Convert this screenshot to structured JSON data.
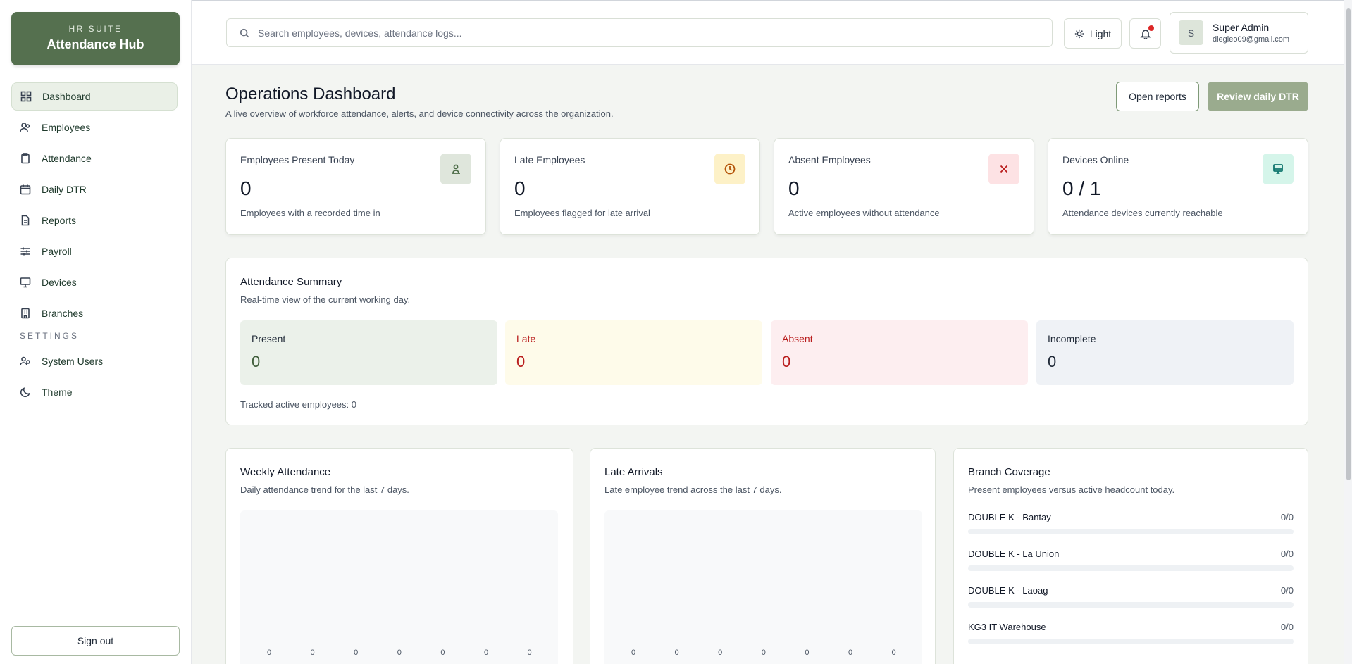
{
  "sidebar": {
    "brand_kicker": "HR SUITE",
    "brand_title": "Attendance Hub",
    "items": [
      {
        "label": "Dashboard",
        "icon": "grid-icon",
        "active": true
      },
      {
        "label": "Employees",
        "icon": "users-icon"
      },
      {
        "label": "Attendance",
        "icon": "clipboard-icon"
      },
      {
        "label": "Daily DTR",
        "icon": "calendar-icon"
      },
      {
        "label": "Reports",
        "icon": "file-icon"
      },
      {
        "label": "Payroll",
        "icon": "sliders-icon"
      },
      {
        "label": "Devices",
        "icon": "monitor-icon"
      },
      {
        "label": "Branches",
        "icon": "building-icon"
      }
    ],
    "settings_label": "SETTINGS",
    "settings_items": [
      {
        "label": "System Users",
        "icon": "users-gear-icon"
      },
      {
        "label": "Theme",
        "icon": "moon-icon"
      }
    ],
    "signout_label": "Sign out"
  },
  "topbar": {
    "search_placeholder": "Search employees, devices, attendance logs...",
    "theme_label": "Light",
    "user": {
      "initial": "S",
      "name": "Super Admin",
      "email": "diegleo09@gmail.com"
    }
  },
  "header": {
    "title": "Operations Dashboard",
    "subtitle": "A live overview of workforce attendance, alerts, and device connectivity across the organization.",
    "open_reports_label": "Open reports",
    "review_dtr_label": "Review daily DTR"
  },
  "stats": [
    {
      "label": "Employees Present Today",
      "value": "0",
      "desc": "Employees with a recorded time in",
      "icon": "user-check-icon",
      "badge_bg": "#dfe6dc",
      "icon_color": "#4b6b46"
    },
    {
      "label": "Late Employees",
      "value": "0",
      "desc": "Employees flagged for late arrival",
      "icon": "clock-icon",
      "badge_bg": "#fdf1c7",
      "icon_color": "#b45309"
    },
    {
      "label": "Absent Employees",
      "value": "0",
      "desc": "Active employees without attendance",
      "icon": "x-icon",
      "badge_bg": "#fde2e4",
      "icon_color": "#b91c1c"
    },
    {
      "label": "Devices Online",
      "value": "0 / 1",
      "desc": "Attendance devices currently reachable",
      "icon": "monitor-icon",
      "badge_bg": "#d5f5ea",
      "icon_color": "#0f766e"
    }
  ],
  "summary": {
    "title": "Attendance Summary",
    "subtitle": "Real-time view of the current working day.",
    "tiles": [
      {
        "label": "Present",
        "value": "0",
        "bg": "#ebf1ea",
        "color": "#3f5d3a"
      },
      {
        "label": "Late",
        "value": "0",
        "bg": "#fefbea",
        "color": "#b91c1c"
      },
      {
        "label": "Absent",
        "value": "0",
        "bg": "#fdeef0",
        "color": "#b91c1c"
      },
      {
        "label": "Incomplete",
        "value": "0",
        "bg": "#eff2f6",
        "color": "#1f2937"
      }
    ],
    "tracked": "Tracked active employees: 0"
  },
  "weekly": {
    "title": "Weekly Attendance",
    "subtitle": "Daily attendance trend for the last 7 days."
  },
  "late": {
    "title": "Late Arrivals",
    "subtitle": "Late employee trend across the last 7 days."
  },
  "chart_data": [
    {
      "type": "bar",
      "title": "Weekly Attendance",
      "values": [
        0,
        0,
        0,
        0,
        0,
        0,
        0
      ]
    },
    {
      "type": "bar",
      "title": "Late Arrivals",
      "values": [
        0,
        0,
        0,
        0,
        0,
        0,
        0
      ]
    }
  ],
  "branches": {
    "title": "Branch Coverage",
    "subtitle": "Present employees versus active headcount today.",
    "rows": [
      {
        "name": "DOUBLE K - Bantay",
        "value": "0/0",
        "ratio": 0
      },
      {
        "name": "DOUBLE K - La Union",
        "value": "0/0",
        "ratio": 0
      },
      {
        "name": "DOUBLE K - Laoag",
        "value": "0/0",
        "ratio": 0
      },
      {
        "name": "KG3 IT Warehouse",
        "value": "0/0",
        "ratio": 0
      }
    ]
  }
}
